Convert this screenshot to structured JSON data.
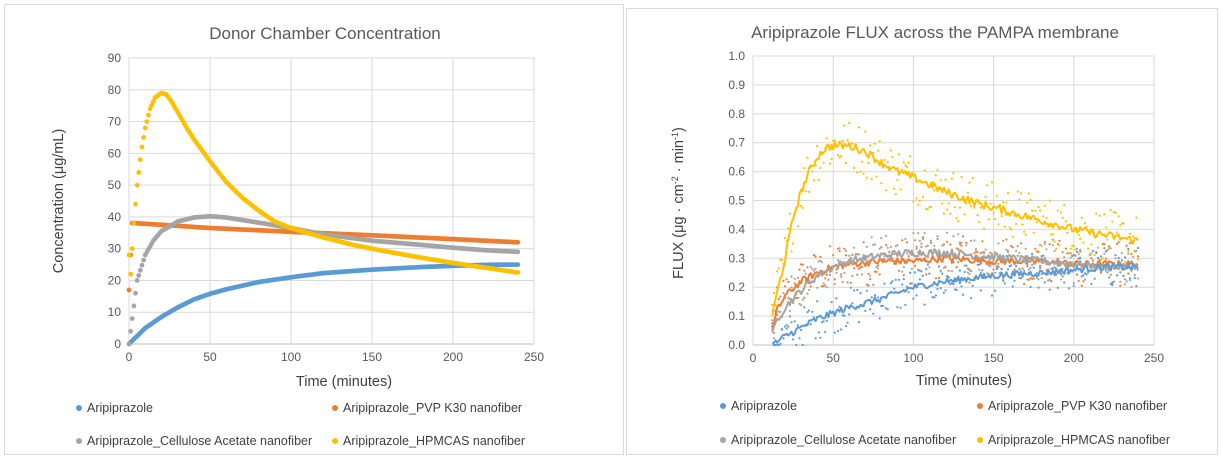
{
  "charts": [
    {
      "title": "Donor Chamber Concentration",
      "xlabel": "Time (minutes)",
      "ylabel": "Concentration (μg/mL)",
      "xticks": [
        "0",
        "50",
        "100",
        "150",
        "200",
        "250"
      ],
      "yticks": [
        "0",
        "10",
        "20",
        "30",
        "40",
        "50",
        "60",
        "70",
        "80",
        "90"
      ]
    },
    {
      "title": "Aripiprazole FLUX across the PAMPA membrane",
      "xlabel": "Time (minutes)",
      "ylabel_main": "FLUX (μg · cm",
      "ylabel_sup1": "-2",
      "ylabel_mid": " · min",
      "ylabel_sup2": "-1",
      "ylabel_end": ")",
      "xticks": [
        "0",
        "50",
        "100",
        "150",
        "200",
        "250"
      ],
      "yticks": [
        "0.0",
        "0.1",
        "0.2",
        "0.3",
        "0.4",
        "0.5",
        "0.6",
        "0.7",
        "0.8",
        "0.9",
        "1.0"
      ]
    }
  ],
  "legend": [
    "Aripiprazole",
    "Aripiprazole_PVP K30 nanofiber",
    "Aripiprazole_Cellulose Acetate nanofiber",
    "Aripiprazole_HPMCAS nanofiber"
  ],
  "colors": {
    "Aripiprazole": "#5b9bd5",
    "Aripiprazole_PVP K30 nanofiber": "#ed7d31",
    "Aripiprazole_Cellulose Acetate nanofiber": "#a5a5a5",
    "Aripiprazole_HPMCAS nanofiber": "#ffc000",
    "grid": "#d9d9d9",
    "axis": "#bfbfbf"
  },
  "chart_data": [
    {
      "type": "scatter",
      "title": "Donor Chamber Concentration",
      "xlabel": "Time (minutes)",
      "ylabel": "Concentration (μg/mL)",
      "xlim": [
        0,
        250
      ],
      "ylim": [
        0,
        90
      ],
      "grid": true,
      "legend_position": "bottom",
      "series": [
        {
          "name": "Aripiprazole",
          "x": [
            0,
            2,
            5,
            10,
            20,
            30,
            40,
            50,
            60,
            80,
            100,
            120,
            150,
            180,
            200,
            220,
            240
          ],
          "y": [
            0,
            1,
            2.5,
            5,
            8.5,
            11.5,
            14,
            15.8,
            17.2,
            19.5,
            21,
            22.3,
            23.4,
            24.2,
            24.6,
            24.9,
            25
          ]
        },
        {
          "name": "Aripiprazole_PVP K30 nanofiber",
          "x": [
            0,
            1,
            2,
            5,
            20,
            50,
            100,
            150,
            200,
            240
          ],
          "y": [
            17,
            28,
            38,
            38,
            37.5,
            36.5,
            35.3,
            34.2,
            33,
            32
          ]
        },
        {
          "name": "Aripiprazole_Cellulose Acetate nanofiber",
          "x": [
            0,
            1,
            3,
            5,
            10,
            15,
            20,
            30,
            40,
            50,
            60,
            80,
            100,
            120,
            150,
            180,
            200,
            220,
            240
          ],
          "y": [
            0,
            4,
            12,
            20,
            28,
            32.5,
            35.5,
            38.5,
            39.8,
            40.2,
            39.8,
            38.2,
            36.5,
            34.5,
            32.5,
            31.2,
            30.3,
            29.5,
            29
          ]
        },
        {
          "name": "Aripiprazole_HPMCAS nanofiber",
          "x": [
            0,
            1,
            2,
            3,
            5,
            8,
            10,
            13,
            16,
            20,
            23,
            26,
            30,
            35,
            40,
            45,
            50,
            60,
            70,
            80,
            90,
            100,
            110,
            120,
            140,
            160,
            180,
            200,
            220,
            240
          ],
          "y": [
            28,
            22,
            30,
            38,
            50,
            62,
            68,
            74,
            77.5,
            79,
            78.5,
            76.5,
            73,
            68.5,
            64.5,
            61,
            57.5,
            51,
            46,
            42,
            38.5,
            36.5,
            35,
            33.5,
            31,
            29,
            27.2,
            25.5,
            24,
            22.5
          ]
        }
      ]
    },
    {
      "type": "line",
      "title": "Aripiprazole FLUX across the PAMPA membrane",
      "xlabel": "Time (minutes)",
      "ylabel": "FLUX (μg · cm-2 · min-1)",
      "xlim": [
        0,
        250
      ],
      "ylim": [
        0,
        1.0
      ],
      "grid": true,
      "legend_position": "bottom",
      "note": "Noisy measured points with smoothed lines; values approximate",
      "series": [
        {
          "name": "Aripiprazole",
          "x": [
            12,
            20,
            30,
            40,
            50,
            60,
            80,
            100,
            120,
            150,
            180,
            200,
            220,
            240
          ],
          "y": [
            0.0,
            0.03,
            0.06,
            0.09,
            0.11,
            0.13,
            0.16,
            0.2,
            0.22,
            0.24,
            0.25,
            0.26,
            0.27,
            0.27
          ]
        },
        {
          "name": "Aripiprazole_PVP K30 nanofiber",
          "x": [
            12,
            15,
            20,
            30,
            40,
            50,
            60,
            80,
            100,
            120,
            150,
            180,
            200,
            220,
            240
          ],
          "y": [
            0.05,
            0.12,
            0.17,
            0.22,
            0.25,
            0.27,
            0.28,
            0.29,
            0.29,
            0.3,
            0.29,
            0.29,
            0.28,
            0.28,
            0.28
          ]
        },
        {
          "name": "Aripiprazole_Cellulose Acetate nanofiber",
          "x": [
            12,
            15,
            20,
            30,
            40,
            50,
            60,
            80,
            100,
            120,
            140,
            160,
            180,
            200,
            220,
            240
          ],
          "y": [
            0.03,
            0.09,
            0.13,
            0.19,
            0.24,
            0.27,
            0.29,
            0.31,
            0.32,
            0.32,
            0.31,
            0.3,
            0.29,
            0.28,
            0.27,
            0.27
          ]
        },
        {
          "name": "Aripiprazole_HPMCAS nanofiber",
          "x": [
            12,
            15,
            20,
            25,
            30,
            35,
            40,
            45,
            50,
            60,
            70,
            80,
            90,
            100,
            120,
            140,
            160,
            180,
            200,
            220,
            240
          ],
          "y": [
            0.1,
            0.18,
            0.3,
            0.44,
            0.53,
            0.6,
            0.65,
            0.68,
            0.69,
            0.69,
            0.67,
            0.63,
            0.6,
            0.58,
            0.53,
            0.49,
            0.46,
            0.43,
            0.4,
            0.38,
            0.36
          ]
        }
      ]
    }
  ]
}
